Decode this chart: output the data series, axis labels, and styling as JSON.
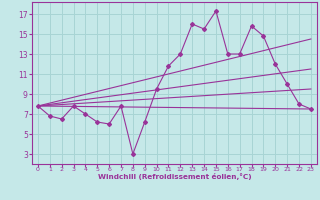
{
  "xlabel": "Windchill (Refroidissement éolien,°C)",
  "bg_color": "#c5e8e8",
  "grid_color": "#a8d4d4",
  "line_color": "#993399",
  "xlim": [
    -0.5,
    23.5
  ],
  "ylim": [
    2.0,
    18.2
  ],
  "xticks": [
    0,
    1,
    2,
    3,
    4,
    5,
    6,
    7,
    8,
    9,
    10,
    11,
    12,
    13,
    14,
    15,
    16,
    17,
    18,
    19,
    20,
    21,
    22,
    23
  ],
  "yticks": [
    3,
    5,
    7,
    9,
    11,
    13,
    15,
    17
  ],
  "main_x": [
    0,
    1,
    2,
    3,
    4,
    5,
    6,
    7,
    8,
    9,
    10,
    11,
    12,
    13,
    14,
    15,
    16,
    17,
    18,
    19,
    20,
    21,
    22,
    23
  ],
  "main_y": [
    7.8,
    6.8,
    6.5,
    7.8,
    7.0,
    6.2,
    6.0,
    7.8,
    3.0,
    6.2,
    9.5,
    11.8,
    13.0,
    16.0,
    15.5,
    17.3,
    13.0,
    13.0,
    15.8,
    14.8,
    12.0,
    10.0,
    8.0,
    7.5
  ],
  "diag_lines": [
    {
      "x": [
        0,
        23
      ],
      "y": [
        7.8,
        7.5
      ]
    },
    {
      "x": [
        0,
        23
      ],
      "y": [
        7.8,
        9.5
      ]
    },
    {
      "x": [
        0,
        23
      ],
      "y": [
        7.8,
        11.5
      ]
    },
    {
      "x": [
        0,
        23
      ],
      "y": [
        7.8,
        14.5
      ]
    }
  ]
}
